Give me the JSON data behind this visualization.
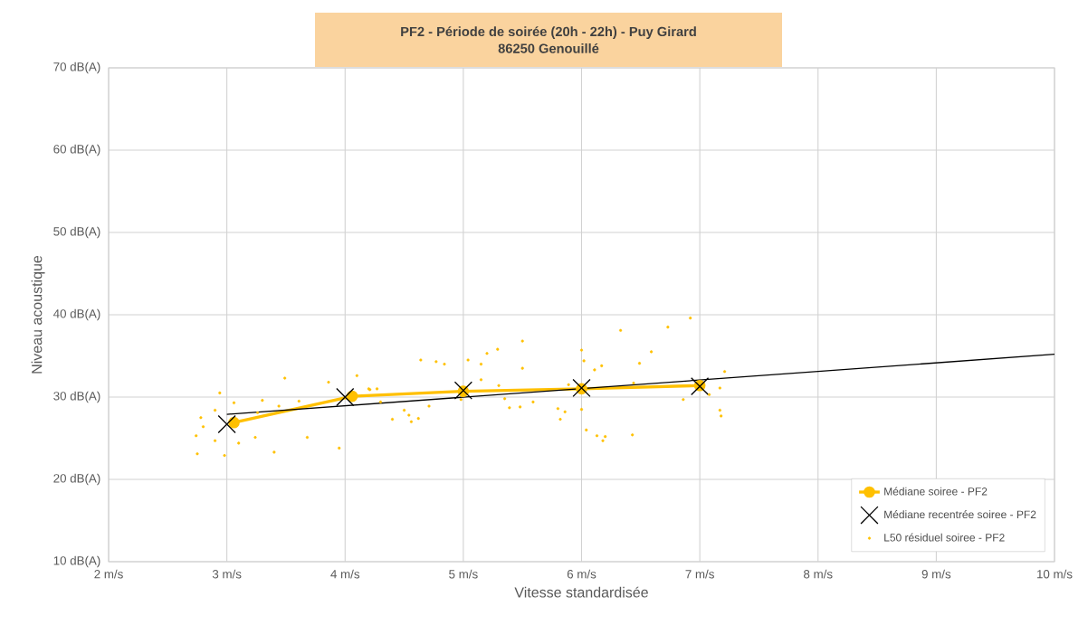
{
  "chart_data": {
    "type": "line",
    "title": "PF2 - Période de soirée (20h - 22h) - Puy Girard",
    "subtitle": "86250 Genouillé",
    "xlabel": "Vitesse standardisée",
    "ylabel": "Niveau acoustique",
    "xlim": [
      2,
      10
    ],
    "ylim": [
      10,
      70
    ],
    "xticks": [
      {
        "value": 2,
        "label": "2 m/s"
      },
      {
        "value": 3,
        "label": "3 m/s"
      },
      {
        "value": 4,
        "label": "4 m/s"
      },
      {
        "value": 5,
        "label": "5 m/s"
      },
      {
        "value": 6,
        "label": "6 m/s"
      },
      {
        "value": 7,
        "label": "7 m/s"
      },
      {
        "value": 8,
        "label": "8 m/s"
      },
      {
        "value": 9,
        "label": "9 m/s"
      },
      {
        "value": 10,
        "label": "10 m/s"
      }
    ],
    "yticks": [
      {
        "value": 10,
        "label": "10 dB(A)"
      },
      {
        "value": 20,
        "label": "20 dB(A)"
      },
      {
        "value": 30,
        "label": "30 dB(A)"
      },
      {
        "value": 40,
        "label": "40 dB(A)"
      },
      {
        "value": 50,
        "label": "50 dB(A)"
      },
      {
        "value": 60,
        "label": "60 dB(A)"
      },
      {
        "value": 70,
        "label": "70 dB(A)"
      }
    ],
    "grid": true,
    "legend": "bottom right",
    "series": [
      {
        "name": "Médiane soiree - PF2",
        "color": "#ffc000",
        "marker": "circle",
        "x": [
          3.06,
          4.06,
          5.0,
          6.0,
          7.0
        ],
        "values": [
          26.9,
          30.1,
          30.7,
          31.0,
          31.4
        ]
      },
      {
        "name": "Médiane recentrée soiree - PF2",
        "type": "scatter",
        "color": "#000000",
        "marker": "cross",
        "x": [
          3,
          4,
          5,
          6,
          7
        ],
        "values": [
          26.7,
          30.0,
          30.8,
          31.1,
          31.3
        ]
      },
      {
        "name": "L50 résiduel soiree - PF2",
        "type": "scatter",
        "color": "#ffc000",
        "marker": "circle",
        "x": [
          2.94,
          2.78,
          2.8,
          2.74,
          2.75,
          2.9,
          2.9,
          2.98,
          3.06,
          3.1,
          3.24,
          3.3,
          3.26,
          3.4,
          3.44,
          3.49,
          3.61,
          3.68,
          3.86,
          3.95,
          4.1,
          4.2,
          4.21,
          4.27,
          4.3,
          4.4,
          4.5,
          4.54,
          4.56,
          4.62,
          4.71,
          4.64,
          4.77,
          4.84,
          4.98,
          5.04,
          5.15,
          5.2,
          5.29,
          5.15,
          5.3,
          5.35,
          5.39,
          5.48,
          5.5,
          5.5,
          5.59,
          5.8,
          5.86,
          5.82,
          5.89,
          6.0,
          6.02,
          6.0,
          6.11,
          6.17,
          6.04,
          6.13,
          6.18,
          6.2,
          6.33,
          6.44,
          6.43,
          6.49,
          6.59,
          6.73,
          6.92,
          6.86,
          7.08,
          7.17,
          7.17,
          7.18,
          7.21
        ],
        "values": [
          30.5,
          27.5,
          26.4,
          25.3,
          23.1,
          24.7,
          28.4,
          22.9,
          29.3,
          24.4,
          25.1,
          29.6,
          28.1,
          23.3,
          28.9,
          32.3,
          29.5,
          25.1,
          31.8,
          23.8,
          32.6,
          31.0,
          30.9,
          31.0,
          29.4,
          27.3,
          28.4,
          27.8,
          27.0,
          27.4,
          28.9,
          34.5,
          34.3,
          34.0,
          29.7,
          34.5,
          34.0,
          35.3,
          35.8,
          32.1,
          31.4,
          29.8,
          28.7,
          28.8,
          36.8,
          33.5,
          29.4,
          28.6,
          28.2,
          27.3,
          31.5,
          35.7,
          34.4,
          28.5,
          33.3,
          33.8,
          26.0,
          25.3,
          24.7,
          25.2,
          38.1,
          31.7,
          25.4,
          34.1,
          35.5,
          38.5,
          39.6,
          29.7,
          30.3,
          31.1,
          28.4,
          27.7,
          33.1
        ]
      },
      {
        "type": "line",
        "color": "#000000",
        "marker": "none",
        "x": [
          3,
          10
        ],
        "values": [
          27.9,
          35.2
        ]
      }
    ]
  }
}
